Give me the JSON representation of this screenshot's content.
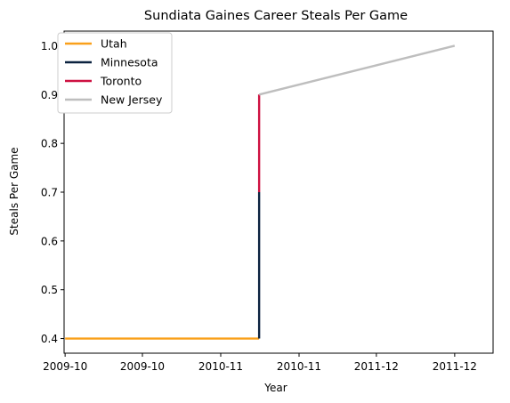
{
  "chart_data": {
    "type": "line",
    "title": "Sundiata Gaines Career Steals Per Game",
    "xlabel": "Year",
    "ylabel": "Steals Per Game",
    "xlim": [
      "2009-09-29",
      "2012-01-15"
    ],
    "ylim": [
      0.37,
      1.03
    ],
    "x_ticks": [
      {
        "value": "2009-10-01",
        "label": "2009-10"
      },
      {
        "value": "2010-03-01",
        "label": "2009-10"
      },
      {
        "value": "2010-08-01",
        "label": "2010-11"
      },
      {
        "value": "2011-01-01",
        "label": "2010-11"
      },
      {
        "value": "2011-06-01",
        "label": "2011-12"
      },
      {
        "value": "2011-11-01",
        "label": "2011-12"
      }
    ],
    "y_ticks": [
      0.4,
      0.5,
      0.6,
      0.7,
      0.8,
      0.9,
      1.0
    ],
    "grid": false,
    "legend_position": "top-left",
    "series": [
      {
        "name": "Utah",
        "color": "#F9A01B",
        "points": [
          [
            "2009-10-01",
            0.4
          ],
          [
            "2010-10-15",
            0.4
          ]
        ]
      },
      {
        "name": "Minnesota",
        "color": "#0C2340",
        "points": [
          [
            "2010-10-15",
            0.4
          ],
          [
            "2010-10-15",
            0.7
          ]
        ]
      },
      {
        "name": "Toronto",
        "color": "#CE1141",
        "points": [
          [
            "2010-10-15",
            0.7
          ],
          [
            "2010-10-15",
            0.9
          ]
        ]
      },
      {
        "name": "New Jersey",
        "color": "#BEBEBE",
        "points": [
          [
            "2010-10-15",
            0.9
          ],
          [
            "2011-11-01",
            1.0
          ]
        ]
      }
    ]
  }
}
